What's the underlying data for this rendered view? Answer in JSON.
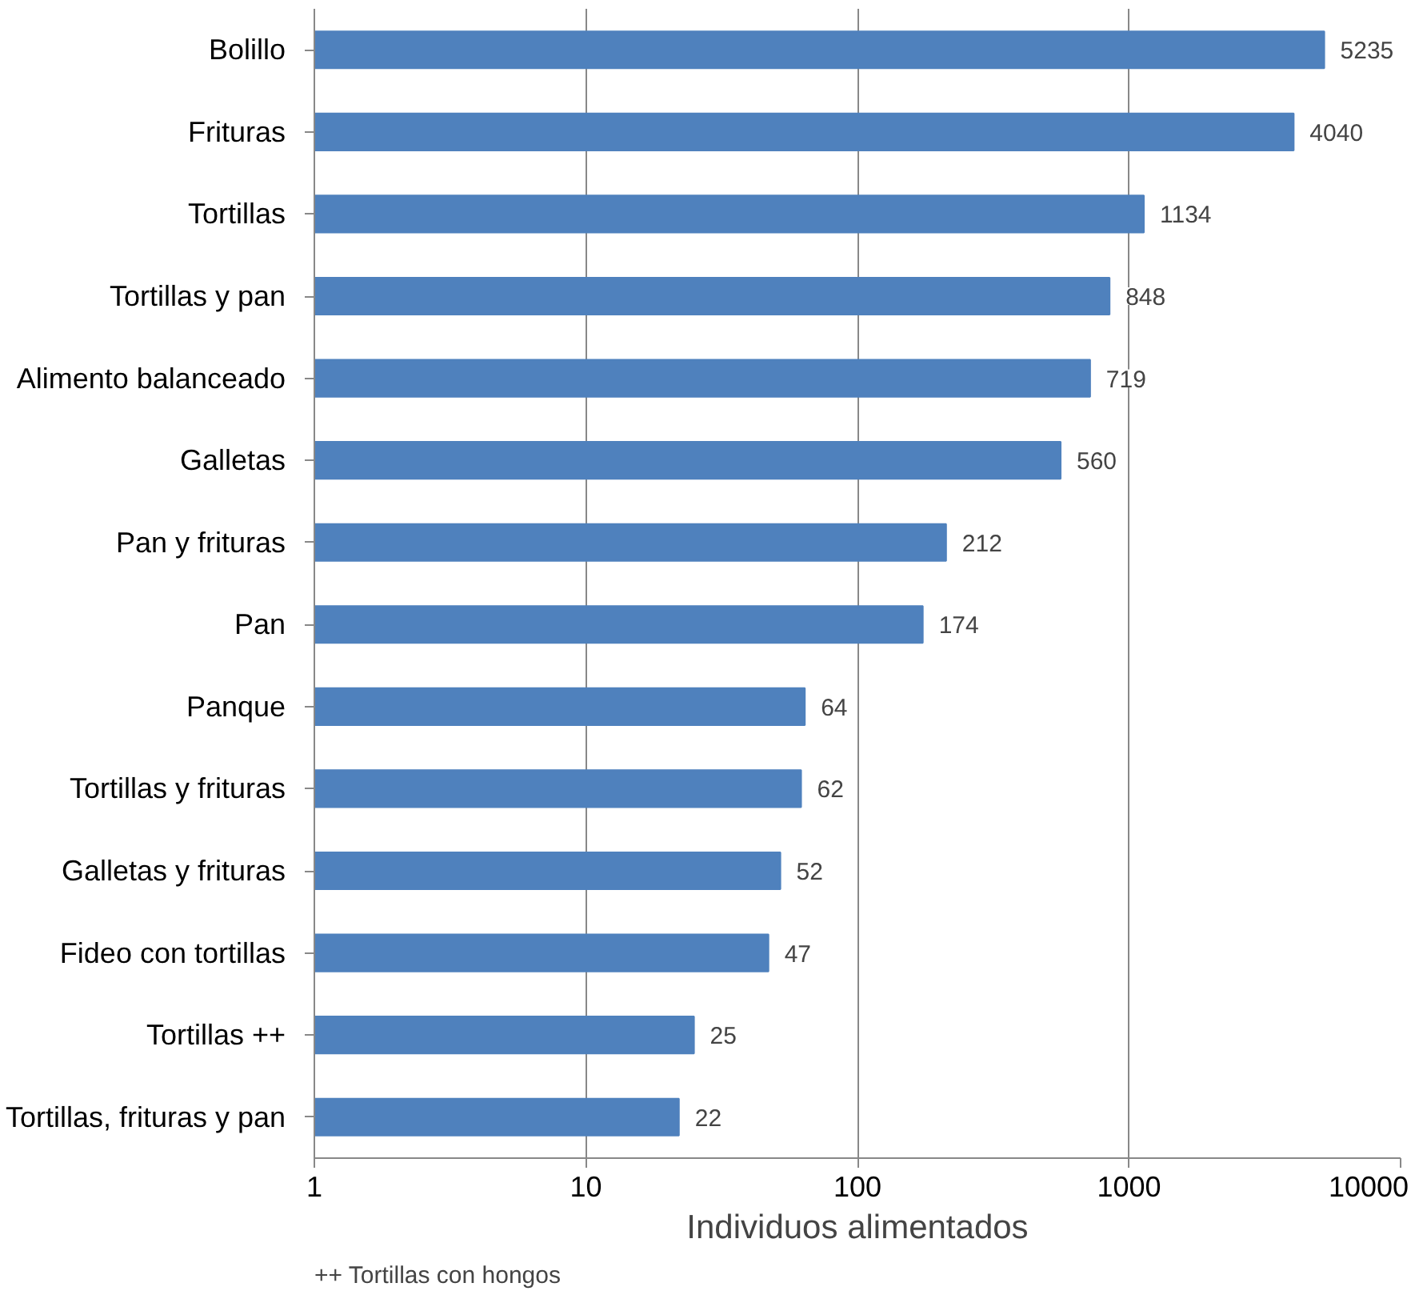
{
  "chart_data": {
    "type": "bar",
    "orientation": "horizontal",
    "log": "x",
    "xlabel": "Individuos alimentados",
    "categories": [
      "Bolillo",
      "Frituras",
      "Tortillas",
      "Tortillas y pan",
      "Alimento balanceado",
      "Galletas",
      "Pan y frituras",
      "Pan",
      "Panque",
      "Tortillas y frituras",
      "Galletas y frituras",
      "Fideo con tortillas",
      "Tortillas ++",
      "Tortillas, frituras y pan"
    ],
    "values": [
      5235,
      4040,
      1134,
      848,
      719,
      560,
      212,
      174,
      64,
      62,
      52,
      47,
      25,
      22
    ],
    "color": "#4f81bd",
    "xlim": [
      1,
      10000
    ],
    "xticks": [
      1,
      10,
      100,
      1000,
      10000
    ],
    "grid": "x",
    "data_labels": true,
    "annotations": [
      "++ Tortillas con hongos"
    ]
  }
}
